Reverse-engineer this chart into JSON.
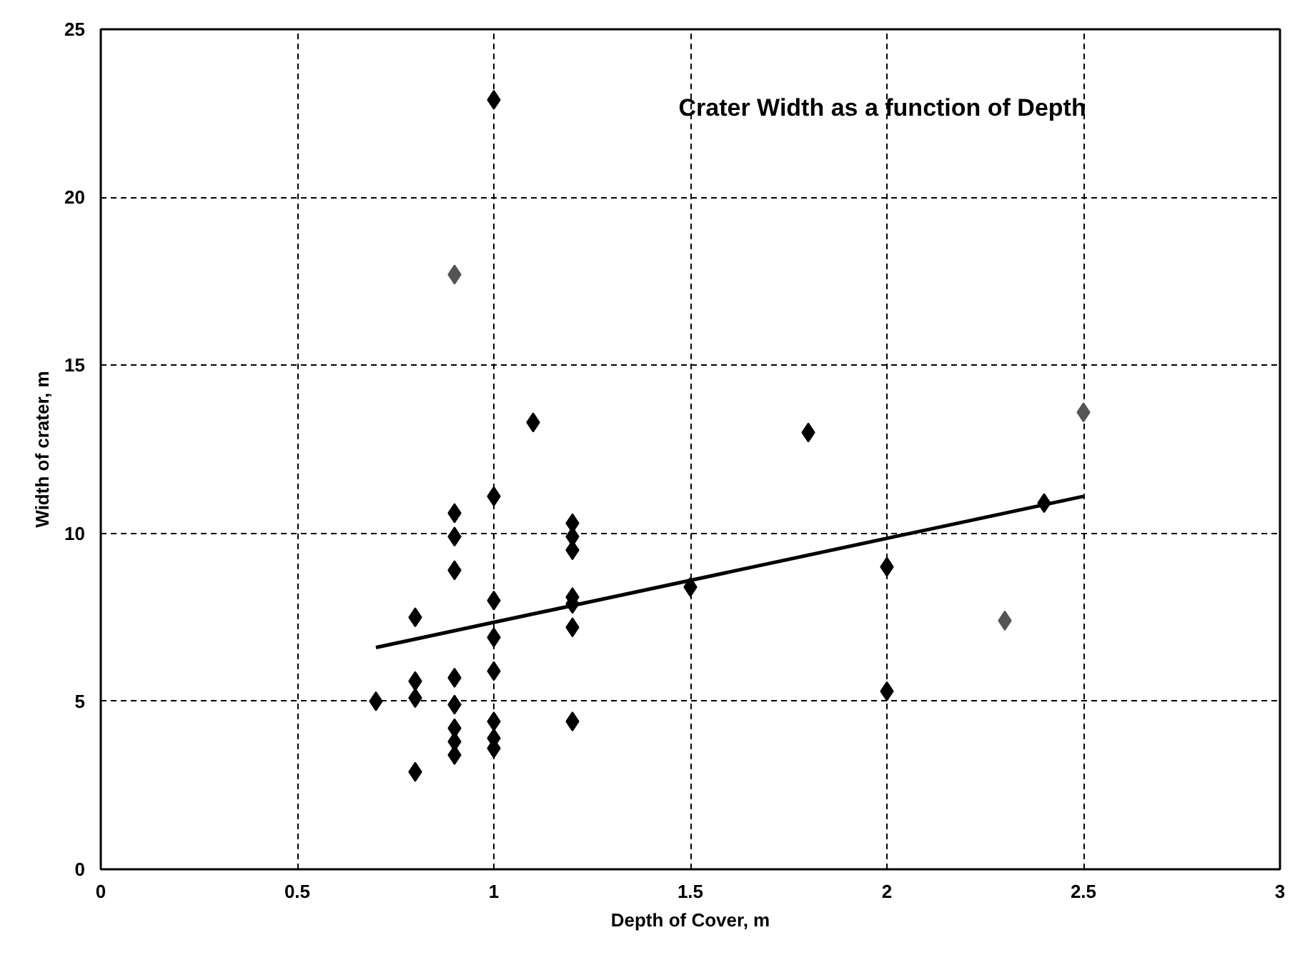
{
  "chart_data": {
    "type": "scatter",
    "title": "Crater Width as a function of Depth",
    "xlabel": "Depth of Cover, m",
    "ylabel": "Width of crater, m",
    "xlim": [
      0,
      3
    ],
    "xticks": [
      0,
      0.5,
      1,
      1.5,
      2,
      2.5,
      3
    ],
    "ylim": [
      0,
      25
    ],
    "yticks": [
      0,
      5,
      10,
      15,
      20,
      25
    ],
    "grid": true,
    "marker": "diamond",
    "series": [
      {
        "color": "#000000",
        "x": [
          0.7,
          0.8,
          0.8,
          0.8,
          0.8,
          0.9,
          0.9,
          0.9,
          0.9,
          0.9,
          0.9,
          0.9,
          0.9,
          1.0,
          1.0,
          1.0,
          1.0,
          1.0,
          1.0,
          1.0,
          1.0,
          1.1,
          1.2,
          1.2,
          1.2,
          1.2,
          1.2,
          1.2,
          1.2,
          1.5,
          1.8,
          2.0,
          2.0,
          2.4
        ],
        "values": [
          5.0,
          7.5,
          5.6,
          5.1,
          2.9,
          10.6,
          9.9,
          8.9,
          5.7,
          4.9,
          4.2,
          3.8,
          3.4,
          22.9,
          11.1,
          8.0,
          6.9,
          5.9,
          4.4,
          3.9,
          3.6,
          13.3,
          10.3,
          9.9,
          9.5,
          8.1,
          7.9,
          7.2,
          4.4,
          8.4,
          13.0,
          9.0,
          5.3,
          10.9
        ]
      },
      {
        "color": "#555555",
        "x": [
          0.9,
          2.3,
          2.5
        ],
        "values": [
          17.7,
          7.4,
          13.6
        ]
      },
      {
        "type": "line",
        "marker": "none",
        "color": "#000000",
        "x": [
          0.7,
          2.5
        ],
        "values": [
          6.6,
          11.1
        ]
      }
    ]
  }
}
